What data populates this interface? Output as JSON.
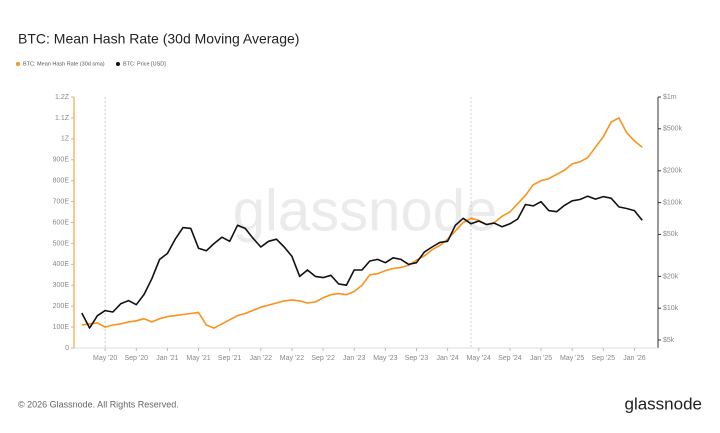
{
  "chart_data": {
    "type": "line",
    "title": "BTC: Mean Hash Rate (30d Moving Average)",
    "watermark": "glassnode",
    "footer": "© 2026 Glassnode. All Rights Reserved.",
    "brand": "glassnode",
    "x": [
      "2020-02",
      "2020-03",
      "2020-04",
      "2020-05",
      "2020-06",
      "2020-07",
      "2020-08",
      "2020-09",
      "2020-10",
      "2020-11",
      "2020-12",
      "2021-01",
      "2021-02",
      "2021-03",
      "2021-04",
      "2021-05",
      "2021-06",
      "2021-07",
      "2021-08",
      "2021-09",
      "2021-10",
      "2021-11",
      "2021-12",
      "2022-01",
      "2022-02",
      "2022-03",
      "2022-04",
      "2022-05",
      "2022-06",
      "2022-07",
      "2022-08",
      "2022-09",
      "2022-10",
      "2022-11",
      "2022-12",
      "2023-01",
      "2023-02",
      "2023-03",
      "2023-04",
      "2023-05",
      "2023-06",
      "2023-07",
      "2023-08",
      "2023-09",
      "2023-10",
      "2023-11",
      "2023-12",
      "2024-01",
      "2024-02",
      "2024-03",
      "2024-04",
      "2024-05",
      "2024-06",
      "2024-07",
      "2024-08",
      "2024-09",
      "2024-10",
      "2024-11",
      "2024-12",
      "2025-01",
      "2025-02",
      "2025-03",
      "2025-04",
      "2025-05",
      "2025-06",
      "2025-07",
      "2025-08",
      "2025-09",
      "2025-10",
      "2025-11",
      "2025-12",
      "2026-01",
      "2026-02"
    ],
    "series": [
      {
        "name": "BTC: Mean Hash Rate (30d sma)",
        "color": "#f7931a",
        "axis": "y",
        "values": [
          110,
          115,
          120,
          100,
          110,
          115,
          125,
          130,
          140,
          125,
          140,
          150,
          155,
          160,
          165,
          170,
          110,
          95,
          115,
          135,
          155,
          165,
          180,
          195,
          205,
          215,
          225,
          230,
          225,
          215,
          220,
          240,
          255,
          260,
          255,
          270,
          300,
          350,
          355,
          370,
          380,
          385,
          395,
          420,
          440,
          470,
          490,
          520,
          560,
          600,
          620,
          610,
          590,
          600,
          630,
          650,
          690,
          730,
          780,
          800,
          810,
          830,
          850,
          880,
          890,
          910,
          960,
          1010,
          1080,
          1100,
          1030,
          990,
          960
        ]
      },
      {
        "name": "BTC: Price [USD]",
        "color": "#111111",
        "axis": "y2",
        "values": [
          9000,
          6500,
          8500,
          9500,
          9200,
          11000,
          11800,
          10800,
          13500,
          19000,
          29000,
          33000,
          45000,
          58000,
          57000,
          37000,
          35000,
          41000,
          47000,
          43000,
          61000,
          57000,
          46000,
          38000,
          43000,
          45000,
          38000,
          31000,
          20000,
          23000,
          20000,
          19500,
          20500,
          17000,
          16500,
          23000,
          23000,
          28000,
          29000,
          27000,
          30000,
          29000,
          26000,
          27000,
          34000,
          38000,
          42000,
          43000,
          61000,
          71000,
          63000,
          67000,
          62000,
          64000,
          59000,
          63000,
          70000,
          96000,
          93000,
          102000,
          84000,
          82000,
          94000,
          104000,
          107000,
          115000,
          108000,
          114000,
          110000,
          91000,
          88000,
          84000,
          68000
        ]
      }
    ],
    "xlim": [
      "2020-01",
      "2026-03"
    ],
    "xticks": [
      {
        "value": "2020-05",
        "label": "May '20"
      },
      {
        "value": "2020-09",
        "label": "Sep '20"
      },
      {
        "value": "2021-01",
        "label": "Jan '21"
      },
      {
        "value": "2021-05",
        "label": "May '21"
      },
      {
        "value": "2021-09",
        "label": "Sep '21"
      },
      {
        "value": "2022-01",
        "label": "Jan '22"
      },
      {
        "value": "2022-05",
        "label": "May '22"
      },
      {
        "value": "2022-09",
        "label": "Sep '22"
      },
      {
        "value": "2023-01",
        "label": "Jan '23"
      },
      {
        "value": "2023-05",
        "label": "May '23"
      },
      {
        "value": "2023-09",
        "label": "Sep '23"
      },
      {
        "value": "2024-01",
        "label": "Jan '24"
      },
      {
        "value": "2024-05",
        "label": "May '24"
      },
      {
        "value": "2024-09",
        "label": "Sep '24"
      },
      {
        "value": "2025-01",
        "label": "Jan '25"
      },
      {
        "value": "2025-05",
        "label": "May '25"
      },
      {
        "value": "2025-09",
        "label": "Sep '25"
      },
      {
        "value": "2026-01",
        "label": "Jan '26"
      }
    ],
    "ylim": [
      0,
      1200
    ],
    "yticks": [
      0,
      {
        "value": 100,
        "label": "100E"
      },
      {
        "value": 200,
        "label": "200E"
      },
      {
        "value": 300,
        "label": "300E"
      },
      {
        "value": 400,
        "label": "400E"
      },
      {
        "value": 500,
        "label": "500E"
      },
      {
        "value": 600,
        "label": "600E"
      },
      {
        "value": 700,
        "label": "700E"
      },
      {
        "value": 800,
        "label": "800E"
      },
      {
        "value": 900,
        "label": "900E"
      },
      {
        "value": 1000,
        "label": "1Z"
      },
      {
        "value": 1100,
        "label": "1.1Z"
      },
      {
        "value": 1200,
        "label": "1.2Z"
      }
    ],
    "y2lim": [
      4200,
      1000000
    ],
    "y2log": true,
    "y2ticks": [
      {
        "value": 5000,
        "label": "$5k"
      },
      {
        "value": 10000,
        "label": "$10k"
      },
      {
        "value": 20000,
        "label": "$20k"
      },
      {
        "value": 50000,
        "label": "$50k"
      },
      {
        "value": 100000,
        "label": "$100k"
      },
      {
        "value": 200000,
        "label": "$200k"
      },
      {
        "value": 500000,
        "label": "$500k"
      },
      {
        "value": 1000000,
        "label": "$1m"
      }
    ],
    "halvings": [
      "2020-05",
      "2024-04"
    ]
  }
}
